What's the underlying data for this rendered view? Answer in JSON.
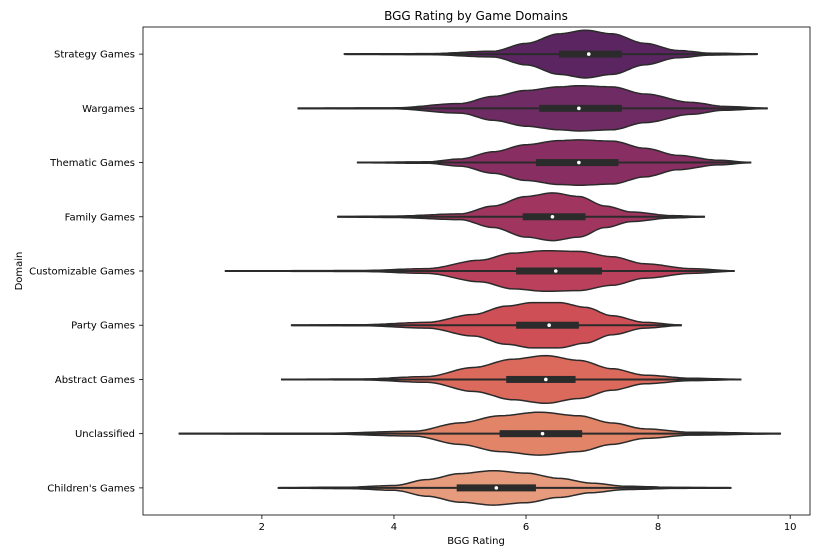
{
  "chart_data": {
    "type": "violin",
    "title": "BGG Rating by Game Domains",
    "xlabel": "BGG Rating",
    "ylabel": "Domain",
    "xlim": [
      0.2,
      10.3
    ],
    "xticks": [
      2,
      4,
      6,
      8,
      10
    ],
    "grid": false,
    "legend": "none",
    "categories": [
      "Strategy Games",
      "Wargames",
      "Thematic Games",
      "Family Games",
      "Customizable Games",
      "Party Games",
      "Abstract Games",
      "Unclassified",
      "Children's Games"
    ],
    "violins": [
      {
        "color": "#5b2561",
        "min": 3.25,
        "q1": 6.5,
        "median": 6.95,
        "q3": 7.45,
        "max": 9.5,
        "density": [
          [
            3.25,
            0.01
          ],
          [
            4.5,
            0.02
          ],
          [
            5.5,
            0.12
          ],
          [
            6.0,
            0.45
          ],
          [
            6.5,
            0.85
          ],
          [
            6.9,
            1.0
          ],
          [
            7.3,
            0.85
          ],
          [
            7.8,
            0.45
          ],
          [
            8.3,
            0.15
          ],
          [
            8.8,
            0.04
          ],
          [
            9.5,
            0.01
          ]
        ]
      },
      {
        "color": "#6f2b63",
        "min": 2.55,
        "q1": 6.2,
        "median": 6.8,
        "q3": 7.45,
        "max": 9.65,
        "density": [
          [
            2.55,
            0.01
          ],
          [
            4.0,
            0.02
          ],
          [
            5.0,
            0.2
          ],
          [
            5.5,
            0.5
          ],
          [
            6.0,
            0.75
          ],
          [
            6.5,
            0.9
          ],
          [
            6.8,
            0.95
          ],
          [
            7.3,
            0.9
          ],
          [
            7.8,
            0.6
          ],
          [
            8.5,
            0.25
          ],
          [
            9.0,
            0.08
          ],
          [
            9.65,
            0.01
          ]
        ]
      },
      {
        "color": "#882e63",
        "min": 3.45,
        "q1": 6.15,
        "median": 6.8,
        "q3": 7.4,
        "max": 9.4,
        "density": [
          [
            3.45,
            0.01
          ],
          [
            4.5,
            0.03
          ],
          [
            5.0,
            0.15
          ],
          [
            5.5,
            0.45
          ],
          [
            6.0,
            0.75
          ],
          [
            6.5,
            0.92
          ],
          [
            6.8,
            0.95
          ],
          [
            7.3,
            0.9
          ],
          [
            7.8,
            0.6
          ],
          [
            8.3,
            0.3
          ],
          [
            8.9,
            0.1
          ],
          [
            9.4,
            0.01
          ]
        ]
      },
      {
        "color": "#a0365f",
        "min": 3.15,
        "q1": 5.95,
        "median": 6.4,
        "q3": 6.9,
        "max": 8.7,
        "density": [
          [
            3.15,
            0.01
          ],
          [
            4.0,
            0.03
          ],
          [
            5.0,
            0.12
          ],
          [
            5.5,
            0.45
          ],
          [
            6.0,
            0.85
          ],
          [
            6.4,
            1.0
          ],
          [
            6.8,
            0.85
          ],
          [
            7.2,
            0.45
          ],
          [
            7.6,
            0.2
          ],
          [
            8.2,
            0.05
          ],
          [
            8.7,
            0.01
          ]
        ]
      },
      {
        "color": "#ba405b",
        "min": 1.45,
        "q1": 5.85,
        "median": 6.45,
        "q3": 7.15,
        "max": 9.15,
        "density": [
          [
            1.45,
            0.01
          ],
          [
            3.5,
            0.02
          ],
          [
            4.5,
            0.1
          ],
          [
            5.3,
            0.45
          ],
          [
            5.8,
            0.75
          ],
          [
            6.3,
            0.85
          ],
          [
            6.8,
            0.82
          ],
          [
            7.3,
            0.6
          ],
          [
            7.8,
            0.3
          ],
          [
            8.5,
            0.1
          ],
          [
            9.15,
            0.01
          ]
        ]
      },
      {
        "color": "#cf4f57",
        "min": 2.45,
        "q1": 5.85,
        "median": 6.35,
        "q3": 6.8,
        "max": 8.35,
        "density": [
          [
            2.45,
            0.01
          ],
          [
            3.5,
            0.02
          ],
          [
            4.5,
            0.12
          ],
          [
            5.2,
            0.45
          ],
          [
            5.7,
            0.8
          ],
          [
            6.1,
            0.95
          ],
          [
            6.5,
            0.95
          ],
          [
            6.9,
            0.75
          ],
          [
            7.3,
            0.4
          ],
          [
            7.8,
            0.12
          ],
          [
            8.35,
            0.01
          ]
        ]
      },
      {
        "color": "#db6a5c",
        "min": 2.3,
        "q1": 5.7,
        "median": 6.3,
        "q3": 6.75,
        "max": 9.25,
        "density": [
          [
            2.3,
            0.01
          ],
          [
            3.5,
            0.02
          ],
          [
            4.5,
            0.12
          ],
          [
            5.2,
            0.5
          ],
          [
            5.8,
            0.85
          ],
          [
            6.3,
            1.0
          ],
          [
            6.8,
            0.8
          ],
          [
            7.3,
            0.45
          ],
          [
            7.8,
            0.18
          ],
          [
            8.5,
            0.05
          ],
          [
            9.25,
            0.01
          ]
        ]
      },
      {
        "color": "#e18468",
        "min": 0.75,
        "q1": 5.6,
        "median": 6.25,
        "q3": 6.85,
        "max": 9.85,
        "density": [
          [
            0.75,
            0.01
          ],
          [
            3.0,
            0.02
          ],
          [
            4.3,
            0.1
          ],
          [
            5.0,
            0.45
          ],
          [
            5.6,
            0.75
          ],
          [
            6.2,
            0.9
          ],
          [
            6.8,
            0.75
          ],
          [
            7.3,
            0.45
          ],
          [
            7.8,
            0.2
          ],
          [
            8.5,
            0.06
          ],
          [
            9.85,
            0.01
          ]
        ]
      },
      {
        "color": "#e59b7c",
        "min": 2.25,
        "q1": 4.95,
        "median": 5.55,
        "q3": 6.15,
        "max": 9.1,
        "density": [
          [
            2.25,
            0.01
          ],
          [
            3.3,
            0.03
          ],
          [
            4.0,
            0.1
          ],
          [
            4.5,
            0.35
          ],
          [
            5.0,
            0.6
          ],
          [
            5.5,
            0.72
          ],
          [
            6.0,
            0.62
          ],
          [
            6.5,
            0.4
          ],
          [
            7.0,
            0.2
          ],
          [
            7.5,
            0.07
          ],
          [
            8.3,
            0.02
          ],
          [
            9.1,
            0.01
          ]
        ]
      }
    ]
  }
}
